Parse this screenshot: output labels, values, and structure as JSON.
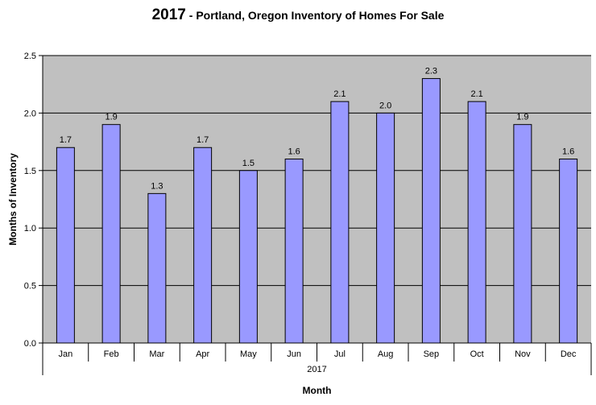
{
  "title": {
    "year": "2017",
    "text": " - Portland, Oregon Inventory of Homes For Sale"
  },
  "colors": {
    "plot_area": "#c0c0c0",
    "bar_fill": "#9999ff",
    "bar_stroke": "#000000",
    "gridline": "#000000"
  },
  "chart_data": {
    "type": "bar",
    "title": "2017 - Portland, Oregon Inventory of Homes For Sale",
    "xlabel": "Month",
    "ylabel": "Months of Inventory",
    "group_label": "2017",
    "categories": [
      "Jan",
      "Feb",
      "Mar",
      "Apr",
      "May",
      "Jun",
      "Jul",
      "Aug",
      "Sep",
      "Oct",
      "Nov",
      "Dec"
    ],
    "values": [
      1.7,
      1.9,
      1.3,
      1.7,
      1.5,
      1.6,
      2.1,
      2.0,
      2.3,
      2.1,
      1.9,
      1.6
    ],
    "data_labels": [
      "1.7",
      "1.9",
      "1.3",
      "1.7",
      "1.5",
      "1.6",
      "2.1",
      "2.0",
      "2.3",
      "2.1",
      "1.9",
      "1.6"
    ],
    "ylim": [
      0,
      2.5
    ],
    "yticks": [
      0,
      0.5,
      1.0,
      1.5,
      2.0,
      2.5
    ],
    "ytick_labels": [
      "0.0",
      "0.5",
      "1.0",
      "1.5",
      "2.0",
      "2.5"
    ],
    "grid": true,
    "legend": "none"
  }
}
